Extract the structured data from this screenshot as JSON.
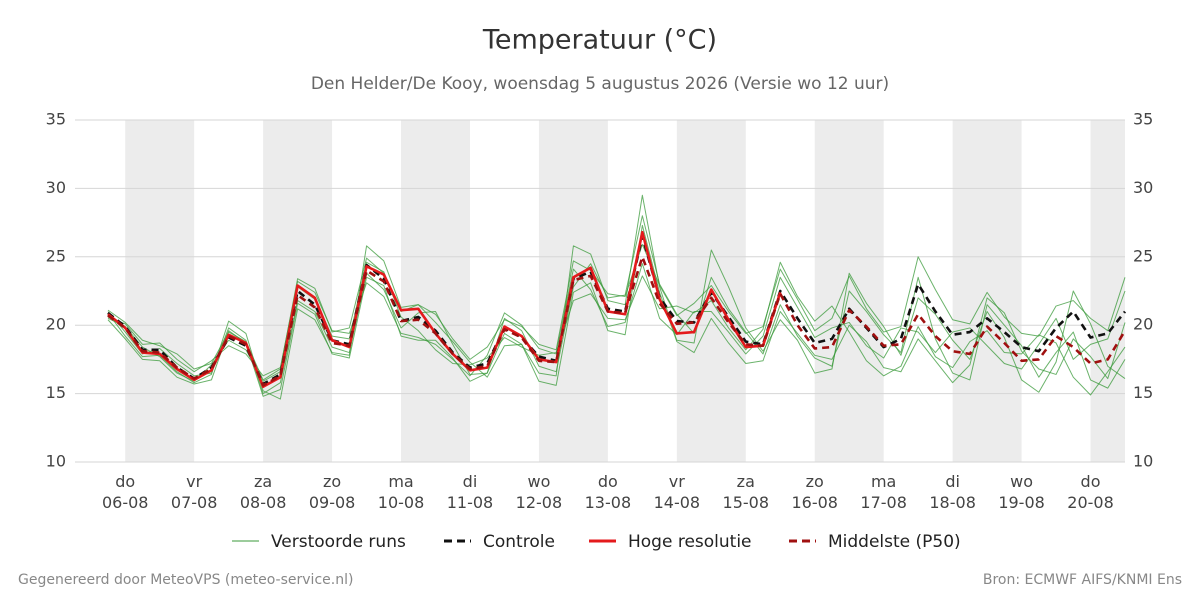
{
  "chart_data": {
    "type": "line",
    "title": "Temperatuur (°C)",
    "subtitle": "Den Helder/De Kooy, woensdag  5 augustus 2026 (Versie wo 12 uur)",
    "footer_left": "Gegenereerd door MeteoVPS (meteo-service.nl)",
    "footer_right": "Bron: ECMWF AIFS/KNMI Ens",
    "categories": [
      null,
      "do 06-08",
      null,
      null,
      null,
      "vr 07-08",
      null,
      null,
      null,
      "za 08-08",
      null,
      null,
      null,
      "zo 09-08",
      null,
      null,
      null,
      "ma 10-08",
      null,
      null,
      null,
      "di 11-08",
      null,
      null,
      null,
      "wo 12-08",
      null,
      null,
      null,
      "do 13-08",
      null,
      null,
      null,
      "vr 14-08",
      null,
      null,
      null,
      "za 15-08",
      null,
      null,
      null,
      "zo 16-08",
      null,
      null,
      null,
      "ma 17-08",
      null,
      null,
      null,
      "di 18-08",
      null,
      null,
      null,
      "wo 19-08",
      null,
      null,
      null,
      "do 20-08",
      null,
      null
    ],
    "ylim": [
      10,
      35
    ],
    "yticks": [
      10,
      15,
      20,
      25,
      30,
      35
    ],
    "grid": true,
    "series": [
      {
        "name": "Verstoorde runs",
        "color": "#3a9a3a",
        "dash": false,
        "runs": [
          [
            21.0,
            19.5,
            17.9,
            18.3,
            17.2,
            16.3,
            16.5,
            19.8,
            18.9,
            15.0,
            15.8,
            21.8,
            21.0,
            18.4,
            18.0,
            23.8,
            22.6,
            19.8,
            20.9,
            21.0,
            18.6,
            16.4,
            16.5,
            20.5,
            19.6,
            17.0,
            16.6,
            22.8,
            24.5,
            22.0,
            22.2,
            28.0,
            23.0,
            20.8,
            19.4,
            23.5,
            21.2,
            19.5,
            17.9,
            21.5,
            19.2,
            17.6,
            17.0,
            22.5,
            21.0,
            19.3,
            18.0,
            23.5,
            19.0,
            16.5,
            16.0,
            21.5,
            20.0,
            18.5,
            16.2,
            18.0,
            19.5,
            16.0,
            15.4,
            17.5
          ],
          [
            20.5,
            19.9,
            18.4,
            17.7,
            16.5,
            15.9,
            17.1,
            18.9,
            18.2,
            15.9,
            16.6,
            22.8,
            21.9,
            19.2,
            19.0,
            24.6,
            23.9,
            20.6,
            19.6,
            18.2,
            17.2,
            17.1,
            17.6,
            19.1,
            18.4,
            17.8,
            18.0,
            24.1,
            22.6,
            19.9,
            20.2,
            24.5,
            20.5,
            19.3,
            21.0,
            21.0,
            19.5,
            17.9,
            19.2,
            23.5,
            21.3,
            19.1,
            19.8,
            20.2,
            18.5,
            17.6,
            19.8,
            19.5,
            18.0,
            19.5,
            19.8,
            18.5,
            17.2,
            16.8,
            18.6,
            20.5,
            17.5,
            18.6,
            19.0,
            22.5
          ],
          [
            20.9,
            19.2,
            17.7,
            17.8,
            16.6,
            15.8,
            16.4,
            20.3,
            19.4,
            15.2,
            14.6,
            21.2,
            20.4,
            18.0,
            17.8,
            25.8,
            24.7,
            21.3,
            21.5,
            20.2,
            18.8,
            17.3,
            16.2,
            18.5,
            18.6,
            16.5,
            16.3,
            25.8,
            25.2,
            21.8,
            21.5,
            29.5,
            22.8,
            18.9,
            18.7,
            25.5,
            22.8,
            19.8,
            18.1,
            20.4,
            18.9,
            16.5,
            16.8,
            23.8,
            21.6,
            19.9,
            17.8,
            22.0,
            20.8,
            18.9,
            17.5,
            21.0,
            19.1,
            16.0,
            15.1,
            17.3,
            22.5,
            20.1,
            17.0,
            16.1
          ],
          [
            20.6,
            20.1,
            18.6,
            18.7,
            17.5,
            16.6,
            17.4,
            18.5,
            17.9,
            16.3,
            16.9,
            23.2,
            22.4,
            19.6,
            19.4,
            23.1,
            22.1,
            19.4,
            19.1,
            18.6,
            17.5,
            16.3,
            17.8,
            20.9,
            20.0,
            18.3,
            17.9,
            21.8,
            22.3,
            20.5,
            20.4,
            23.6,
            21.2,
            21.4,
            20.9,
            21.8,
            19.8,
            18.2,
            19.7,
            24.6,
            22.1,
            20.3,
            21.4,
            19.5,
            17.4,
            16.3,
            17.0,
            19.9,
            17.7,
            16.9,
            18.8,
            19.6,
            18.0,
            17.9,
            19.3,
            18.7,
            16.2,
            14.9,
            16.6,
            18.4
          ],
          [
            20.4,
            19.0,
            17.5,
            17.4,
            16.2,
            15.7,
            16.0,
            19.6,
            18.7,
            14.8,
            15.3,
            21.6,
            20.8,
            17.9,
            17.6,
            23.5,
            22.9,
            19.2,
            18.9,
            18.9,
            17.6,
            15.9,
            16.5,
            19.4,
            18.6,
            15.9,
            15.6,
            22.4,
            23.1,
            19.6,
            19.3,
            27.3,
            22.4,
            18.8,
            18.0,
            20.5,
            18.7,
            17.2,
            17.4,
            21.0,
            19.4,
            17.8,
            17.5,
            20.0,
            18.8,
            16.9,
            16.6,
            19.0,
            17.4,
            15.8,
            17.1,
            22.0,
            20.9,
            18.1,
            16.8,
            16.4,
            19.0,
            17.7,
            16.1,
            20.2
          ],
          [
            21.1,
            20.2,
            18.9,
            18.5,
            17.9,
            16.8,
            17.2,
            19.5,
            18.8,
            16.0,
            16.8,
            23.4,
            22.7,
            19.5,
            19.8,
            24.9,
            23.8,
            21.0,
            21.5,
            20.8,
            19.0,
            17.5,
            18.4,
            20.4,
            19.9,
            18.6,
            18.2,
            24.7,
            24.0,
            22.3,
            22.1,
            25.9,
            22.9,
            20.7,
            21.6,
            22.9,
            21.0,
            19.4,
            19.9,
            24.1,
            21.9,
            19.6,
            20.5,
            23.6,
            21.2,
            19.5,
            19.9,
            25.0,
            22.6,
            20.4,
            20.1,
            22.4,
            20.6,
            19.4,
            19.2,
            21.4,
            21.8,
            20.5,
            19.6,
            23.5
          ]
        ]
      },
      {
        "name": "Controle",
        "color": "#111111",
        "dash": true,
        "values": [
          20.9,
          19.9,
          18.2,
          18.2,
          16.9,
          16.1,
          16.9,
          19.1,
          18.5,
          15.7,
          16.4,
          22.5,
          21.5,
          18.9,
          18.6,
          24.4,
          23.4,
          20.3,
          20.6,
          19.6,
          18.0,
          16.9,
          17.2,
          19.8,
          19.1,
          17.7,
          17.4,
          23.4,
          23.9,
          21.2,
          21.0,
          26.5,
          22.0,
          20.3,
          20.2,
          22.4,
          20.6,
          18.8,
          18.6,
          22.5,
          20.5,
          18.7,
          19.0,
          21.2,
          19.8,
          18.4,
          19.0,
          23.0,
          21.0,
          19.3,
          19.5,
          20.5,
          19.5,
          18.4,
          18.1,
          19.8,
          21.0,
          19.1,
          19.4,
          21.0
        ]
      },
      {
        "name": "Hoge resolutie",
        "color": "#e41a1c",
        "dash": false,
        "values": [
          20.8,
          19.8,
          18.0,
          17.9,
          16.8,
          16.0,
          16.7,
          19.3,
          18.7,
          15.5,
          16.2,
          22.9,
          22.0,
          18.9,
          18.4,
          24.3,
          23.7,
          21.1,
          21.2,
          19.4,
          17.9,
          16.7,
          16.9,
          19.9,
          19.2,
          17.5,
          17.3,
          23.5,
          24.2,
          21.0,
          20.8,
          26.8,
          21.9,
          19.4,
          19.5,
          22.6,
          20.4,
          18.4,
          18.5,
          22.4,
          null,
          null,
          null,
          null,
          null,
          null,
          null,
          null,
          null,
          null,
          null,
          null,
          null,
          null,
          null,
          null,
          null,
          null,
          null,
          null
        ]
      },
      {
        "name": "Middelste (P50)",
        "color": "#a01010",
        "dash": true,
        "values": [
          20.7,
          19.8,
          18.1,
          18.0,
          16.9,
          16.1,
          16.8,
          19.2,
          18.6,
          15.6,
          16.3,
          22.2,
          21.3,
          18.7,
          18.5,
          24.0,
          23.2,
          20.3,
          20.4,
          19.4,
          17.9,
          16.8,
          17.0,
          19.7,
          19.1,
          17.4,
          17.3,
          23.3,
          23.6,
          21.0,
          20.9,
          25.0,
          21.6,
          20.1,
          20.2,
          22.0,
          20.2,
          18.6,
          18.5,
          22.3,
          20.0,
          18.3,
          18.4,
          21.1,
          19.9,
          18.5,
          18.6,
          20.8,
          19.2,
          18.1,
          17.9,
          19.9,
          18.7,
          17.4,
          17.5,
          19.2,
          18.4,
          17.2,
          17.5,
          19.6
        ]
      }
    ]
  }
}
